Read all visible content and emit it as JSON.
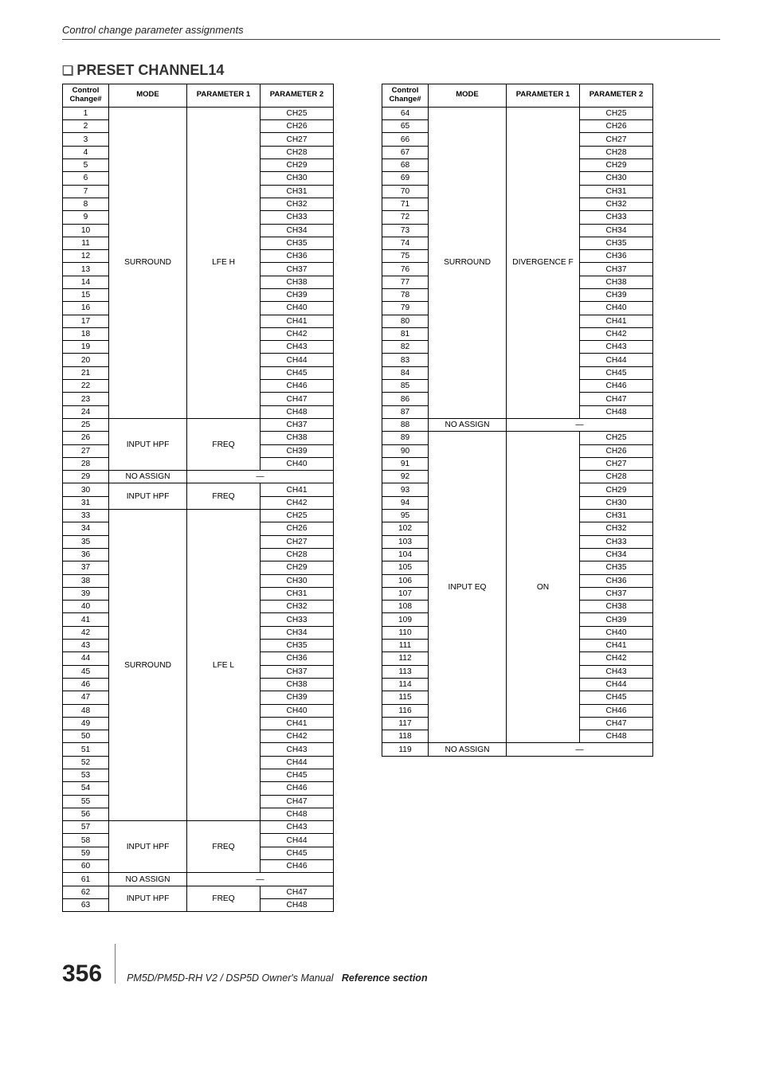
{
  "header_subtitle": "Control change parameter assignments",
  "section_title": "PRESET CHANNEL14",
  "section_symbol": "❏",
  "columns": {
    "cc": "Control\nChange#",
    "mode": "MODE",
    "p1": "PARAMETER 1",
    "p2": "PARAMETER 2"
  },
  "left_groups": [
    {
      "mode": "SURROUND",
      "p1": "LFE H",
      "cc": [
        1,
        2,
        3,
        4,
        5,
        6,
        7,
        8,
        9,
        10,
        11,
        12,
        13,
        14,
        15,
        16,
        17,
        18,
        19,
        20,
        21,
        22,
        23,
        24
      ],
      "p2": [
        "CH25",
        "CH26",
        "CH27",
        "CH28",
        "CH29",
        "CH30",
        "CH31",
        "CH32",
        "CH33",
        "CH34",
        "CH35",
        "CH36",
        "CH37",
        "CH38",
        "CH39",
        "CH40",
        "CH41",
        "CH42",
        "CH43",
        "CH44",
        "CH45",
        "CH46",
        "CH47",
        "CH48"
      ]
    },
    {
      "mode": "INPUT HPF",
      "p1": "FREQ",
      "cc": [
        25,
        26,
        27,
        28
      ],
      "p2": [
        "CH37",
        "CH38",
        "CH39",
        "CH40"
      ]
    },
    {
      "mode": "NO ASSIGN",
      "p1": null,
      "cc": [
        29
      ],
      "p2": [
        "—"
      ],
      "dash": true
    },
    {
      "mode": "INPUT HPF",
      "p1": "FREQ",
      "cc": [
        30,
        31
      ],
      "p2": [
        "CH41",
        "CH42"
      ]
    },
    {
      "mode": "SURROUND",
      "p1": "LFE L",
      "cc": [
        33,
        34,
        35,
        36,
        37,
        38,
        39,
        40,
        41,
        42,
        43,
        44,
        45,
        46,
        47,
        48,
        49,
        50,
        51,
        52,
        53,
        54,
        55,
        56
      ],
      "p2": [
        "CH25",
        "CH26",
        "CH27",
        "CH28",
        "CH29",
        "CH30",
        "CH31",
        "CH32",
        "CH33",
        "CH34",
        "CH35",
        "CH36",
        "CH37",
        "CH38",
        "CH39",
        "CH40",
        "CH41",
        "CH42",
        "CH43",
        "CH44",
        "CH45",
        "CH46",
        "CH47",
        "CH48"
      ]
    },
    {
      "mode": "INPUT HPF",
      "p1": "FREQ",
      "cc": [
        57,
        58,
        59,
        60
      ],
      "p2": [
        "CH43",
        "CH44",
        "CH45",
        "CH46"
      ]
    },
    {
      "mode": "NO ASSIGN",
      "p1": null,
      "cc": [
        61
      ],
      "p2": [
        "—"
      ],
      "dash": true
    },
    {
      "mode": "INPUT HPF",
      "p1": "FREQ",
      "cc": [
        62,
        63
      ],
      "p2": [
        "CH47",
        "CH48"
      ]
    }
  ],
  "right_groups": [
    {
      "mode": "SURROUND",
      "p1": "DIVERGENCE F",
      "cc": [
        64,
        65,
        66,
        67,
        68,
        69,
        70,
        71,
        72,
        73,
        74,
        75,
        76,
        77,
        78,
        79,
        80,
        81,
        82,
        83,
        84,
        85,
        86,
        87
      ],
      "p2": [
        "CH25",
        "CH26",
        "CH27",
        "CH28",
        "CH29",
        "CH30",
        "CH31",
        "CH32",
        "CH33",
        "CH34",
        "CH35",
        "CH36",
        "CH37",
        "CH38",
        "CH39",
        "CH40",
        "CH41",
        "CH42",
        "CH43",
        "CH44",
        "CH45",
        "CH46",
        "CH47",
        "CH48"
      ]
    },
    {
      "mode": "NO ASSIGN",
      "p1": null,
      "cc": [
        88
      ],
      "p2": [
        "—"
      ],
      "dash": true
    },
    {
      "mode": "INPUT EQ",
      "p1": "ON",
      "cc": [
        89,
        90,
        91,
        92,
        93,
        94,
        95,
        102,
        103,
        104,
        105,
        106,
        107,
        108,
        109,
        110,
        111,
        112,
        113,
        114,
        115,
        116,
        117,
        118
      ],
      "p2": [
        "CH25",
        "CH26",
        "CH27",
        "CH28",
        "CH29",
        "CH30",
        "CH31",
        "CH32",
        "CH33",
        "CH34",
        "CH35",
        "CH36",
        "CH37",
        "CH38",
        "CH39",
        "CH40",
        "CH41",
        "CH42",
        "CH43",
        "CH44",
        "CH45",
        "CH46",
        "CH47",
        "CH48"
      ]
    },
    {
      "mode": "NO ASSIGN",
      "p1": null,
      "cc": [
        119
      ],
      "p2": [
        "—"
      ],
      "dash": true
    }
  ],
  "footer": {
    "page_number": "356",
    "manual_title": "PM5D/PM5D-RH V2 / DSP5D Owner's Manual",
    "section_name": "Reference section"
  }
}
